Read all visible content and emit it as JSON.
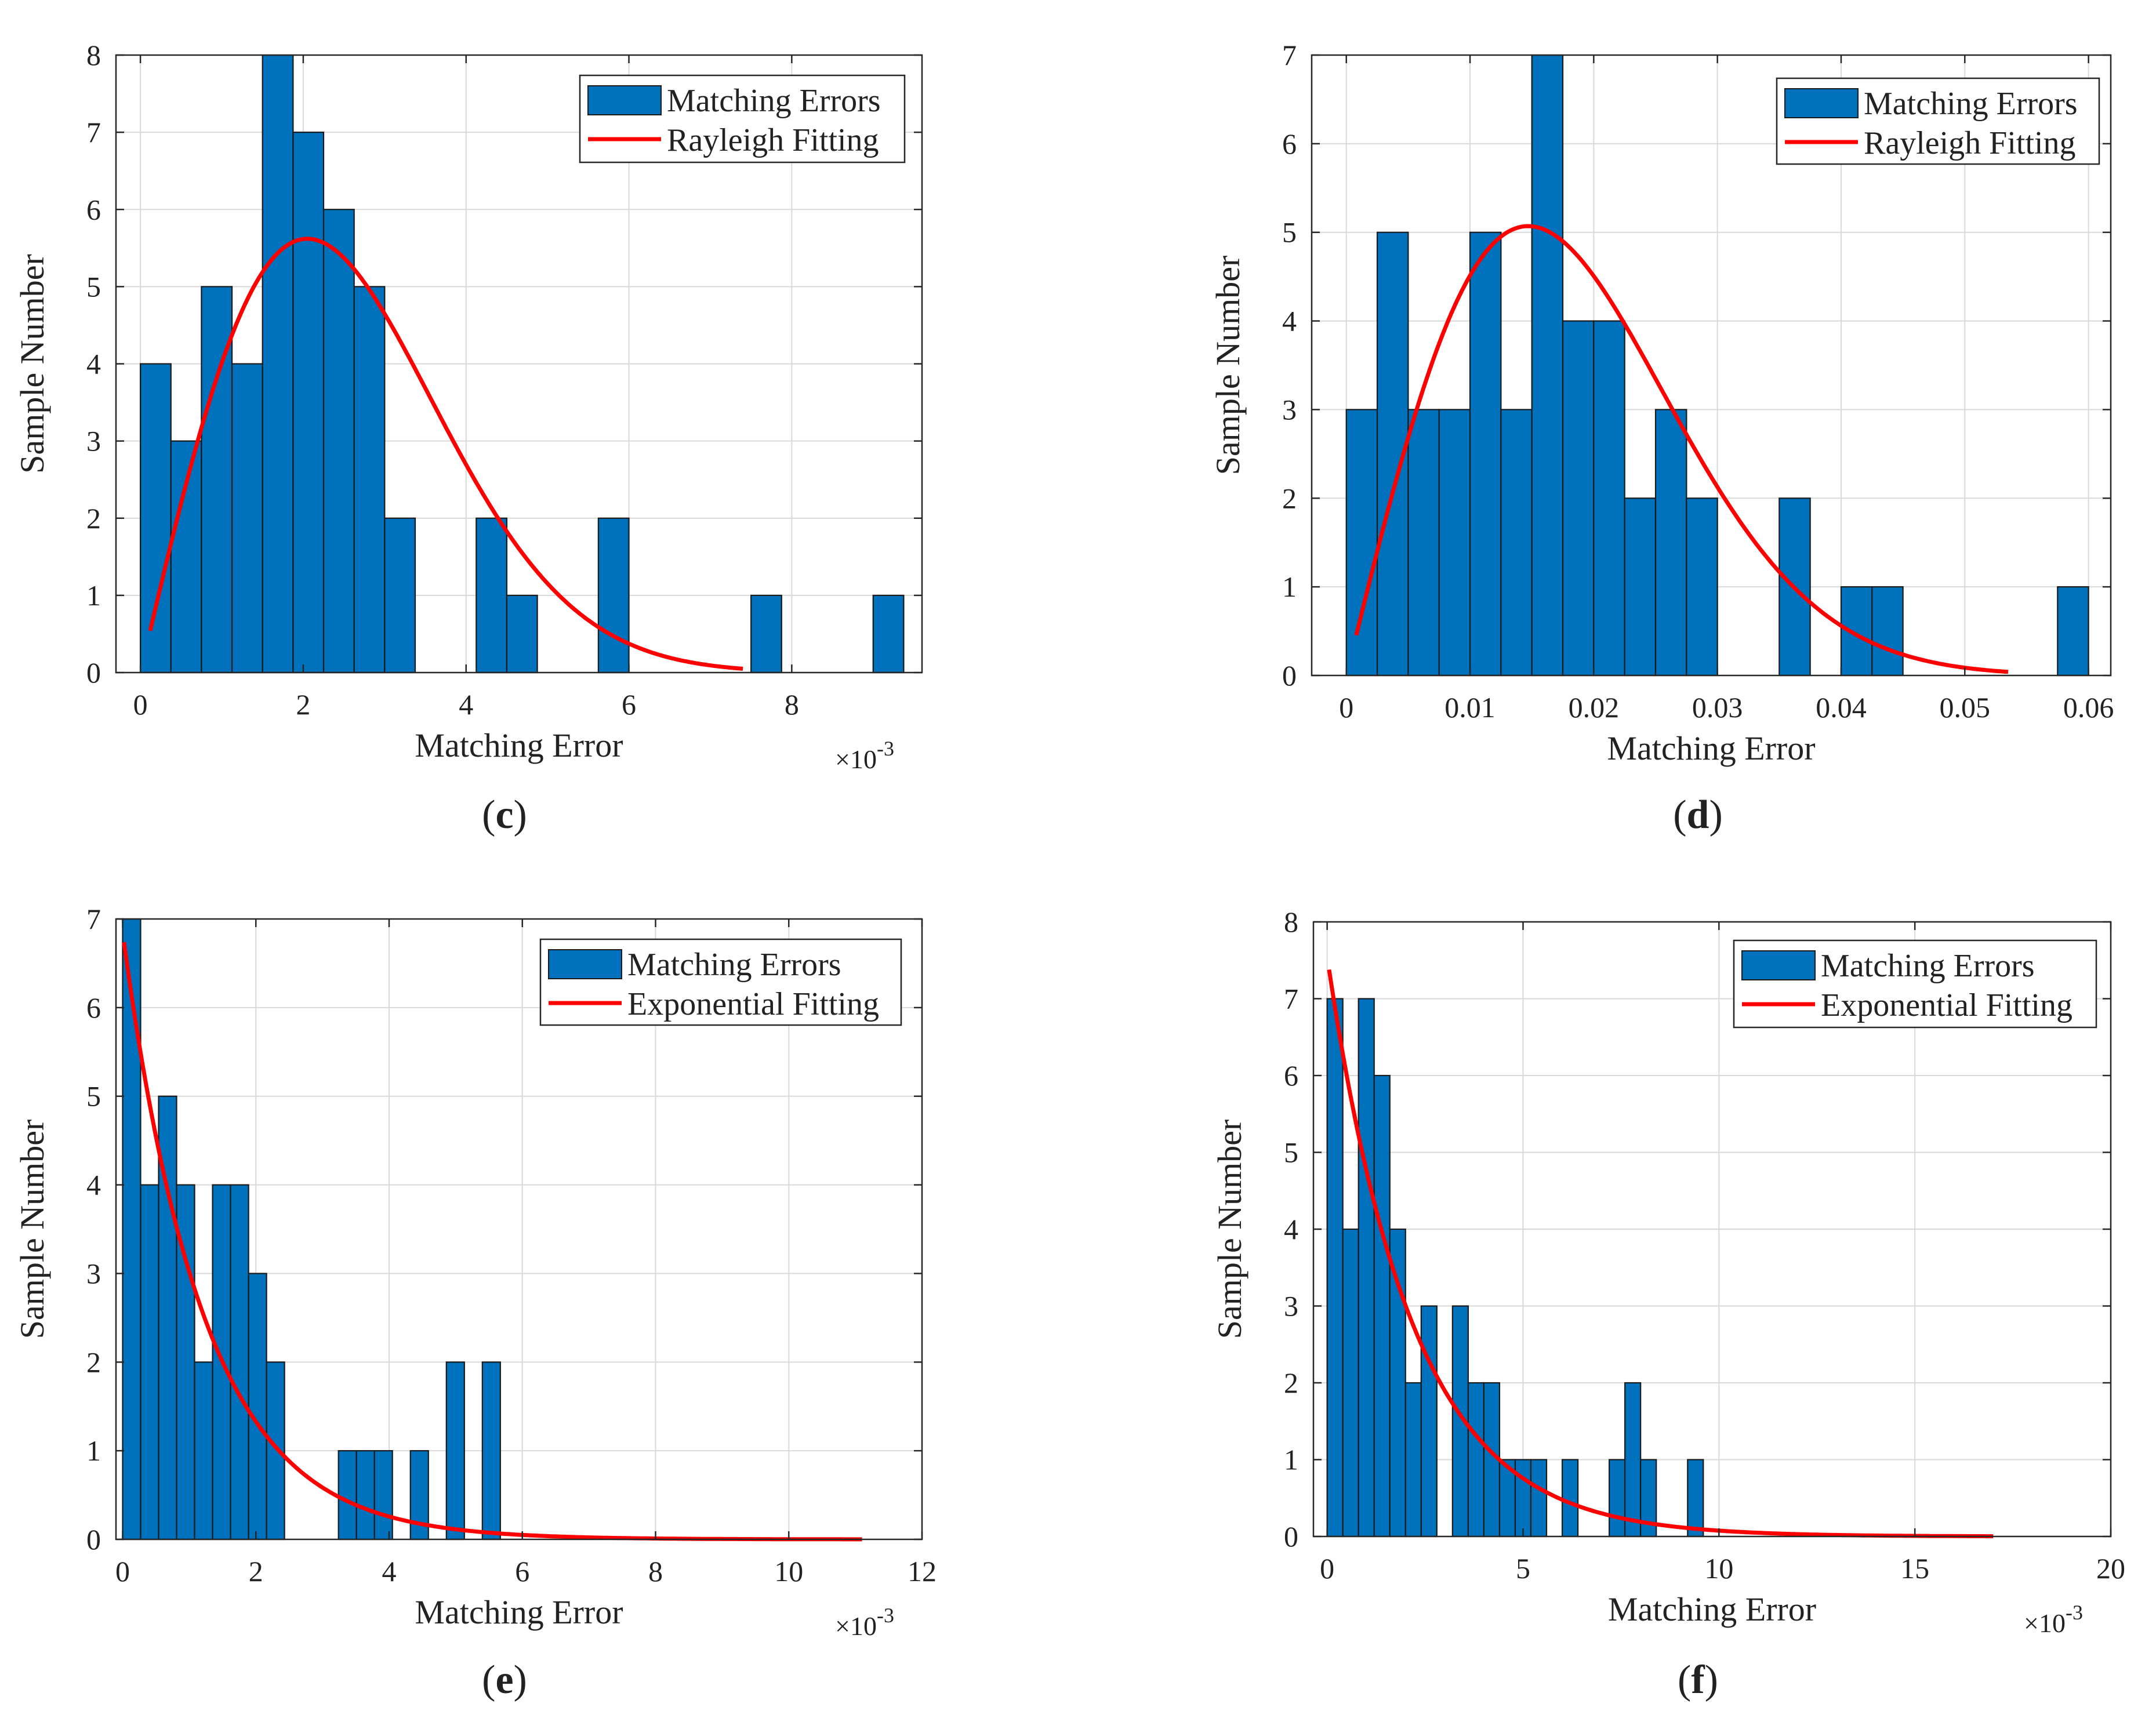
{
  "figure": {
    "panels": [
      "c",
      "d",
      "e",
      "f"
    ]
  },
  "chart_data": [
    {
      "id": "c",
      "type": "bar",
      "caption": {
        "open": "(",
        "letter": "c",
        "close": ")"
      },
      "xlabel": "Matching Error",
      "ylabel": "Sample Number",
      "x_exponent": {
        "base": "×10",
        "power": "-3"
      },
      "xlim": [
        -0.3,
        9.6
      ],
      "ylim": [
        0,
        8
      ],
      "xticks": [
        0,
        2,
        4,
        6,
        8
      ],
      "xtick_labels": [
        "0",
        "2",
        "4",
        "6",
        "8"
      ],
      "yticks": [
        0,
        1,
        2,
        3,
        4,
        5,
        6,
        7,
        8
      ],
      "ytick_labels": [
        "0",
        "1",
        "2",
        "3",
        "4",
        "5",
        "6",
        "7",
        "8"
      ],
      "grid": true,
      "legend_position": "top-right",
      "legend": [
        "Matching Errors",
        "Rayleigh Fitting"
      ],
      "colors": {
        "bar": "#0072BD",
        "fit": "#FF0000"
      },
      "bars": {
        "edges": [
          0,
          0.375,
          0.75,
          1.125,
          1.5,
          1.875,
          2.25,
          2.625,
          3.0,
          3.375,
          3.75,
          4.125,
          4.5,
          4.875,
          5.25,
          5.625,
          6.0,
          6.375,
          6.75,
          7.125,
          7.5,
          7.875,
          8.25,
          8.625,
          9.0,
          9.375
        ],
        "values": [
          4,
          3,
          5,
          4,
          8,
          7,
          6,
          5,
          2,
          0,
          0,
          2,
          1,
          0,
          0,
          2,
          0,
          0,
          0,
          0,
          1,
          0,
          0,
          0,
          1
        ]
      },
      "fit": {
        "kind": "rayleigh",
        "sigma": 2.05,
        "peak": 5.62,
        "x_range": [
          0.12,
          7.4
        ],
        "points": [
          [
            0.12,
            0.5
          ],
          [
            2.05,
            5.62
          ],
          [
            3.0,
            4.7
          ],
          [
            4.0,
            2.65
          ],
          [
            5.0,
            1.1
          ],
          [
            6.0,
            0.37
          ],
          [
            7.4,
            0.05
          ]
        ]
      }
    },
    {
      "id": "d",
      "type": "bar",
      "caption": {
        "open": "(",
        "letter": "d",
        "close": ")"
      },
      "xlabel": "Matching Error",
      "ylabel": "Sample Number",
      "x_exponent": null,
      "xlim": [
        -0.0028,
        0.0618
      ],
      "ylim": [
        0,
        7
      ],
      "xticks": [
        0,
        0.01,
        0.02,
        0.03,
        0.04,
        0.05,
        0.06
      ],
      "xtick_labels": [
        "0",
        "0.01",
        "0.02",
        "0.03",
        "0.04",
        "0.05",
        "0.06"
      ],
      "yticks": [
        0,
        1,
        2,
        3,
        4,
        5,
        6,
        7
      ],
      "ytick_labels": [
        "0",
        "1",
        "2",
        "3",
        "4",
        "5",
        "6",
        "7"
      ],
      "grid": true,
      "legend_position": "top-right",
      "legend": [
        "Matching Errors",
        "Rayleigh Fitting"
      ],
      "colors": {
        "bar": "#0072BD",
        "fit": "#FF0000"
      },
      "bars": {
        "edges": [
          0,
          0.0025,
          0.005,
          0.0075,
          0.01,
          0.0125,
          0.015,
          0.0175,
          0.02,
          0.0225,
          0.025,
          0.0275,
          0.03,
          0.0325,
          0.035,
          0.0375,
          0.04,
          0.0425,
          0.045,
          0.0475,
          0.05,
          0.0525,
          0.055,
          0.0575,
          0.06
        ],
        "values": [
          3,
          5,
          3,
          3,
          5,
          3,
          7,
          4,
          4,
          2,
          3,
          2,
          0,
          0,
          2,
          0,
          1,
          1,
          0,
          0,
          0,
          0,
          0,
          1
        ]
      },
      "fit": {
        "kind": "rayleigh",
        "sigma": 0.0147,
        "peak": 5.07,
        "x_range": [
          0.0008,
          0.0535
        ],
        "points": [
          [
            0.0008,
            0.45
          ],
          [
            0.0147,
            5.07
          ],
          [
            0.025,
            3.2
          ],
          [
            0.035,
            1.2
          ],
          [
            0.0535,
            0.05
          ]
        ]
      }
    },
    {
      "id": "e",
      "type": "bar",
      "caption": {
        "open": "(",
        "letter": "e",
        "close": ")"
      },
      "xlabel": "Matching Error",
      "ylabel": "Sample Number",
      "x_exponent": {
        "base": "×10",
        "power": "-3"
      },
      "xlim": [
        -0.1,
        12
      ],
      "ylim": [
        0,
        7
      ],
      "xticks": [
        0,
        2,
        4,
        6,
        8,
        10,
        12
      ],
      "xtick_labels": [
        "0",
        "2",
        "4",
        "6",
        "8",
        "10",
        "12"
      ],
      "yticks": [
        0,
        1,
        2,
        3,
        4,
        5,
        6,
        7
      ],
      "ytick_labels": [
        "0",
        "1",
        "2",
        "3",
        "4",
        "5",
        "6",
        "7"
      ],
      "grid": true,
      "legend_position": "top-right",
      "legend": [
        "Matching Errors",
        "Exponential Fitting"
      ],
      "colors": {
        "bar": "#0072BD",
        "fit": "#FF0000"
      },
      "bars": {
        "edges": [
          0,
          0.27,
          0.54,
          0.81,
          1.08,
          1.35,
          1.62,
          1.89,
          2.16,
          2.43,
          2.7,
          2.97,
          3.24,
          3.51,
          3.78,
          4.05,
          4.32,
          4.59,
          4.86,
          5.13,
          5.4,
          5.67
        ],
        "values": [
          7,
          4,
          5,
          4,
          2,
          4,
          4,
          3,
          2,
          0,
          0,
          0,
          1,
          1,
          1,
          0,
          1,
          0,
          2,
          0,
          2
        ]
      },
      "fit": {
        "kind": "exponential",
        "amplitude": 6.85,
        "rate": 0.82,
        "x_range": [
          0.02,
          11.1
        ],
        "points": [
          [
            0.02,
            6.85
          ],
          [
            1.0,
            3.0
          ],
          [
            2.0,
            1.35
          ],
          [
            4.0,
            0.25
          ],
          [
            6.0,
            0.05
          ],
          [
            11.1,
            0.0
          ]
        ]
      }
    },
    {
      "id": "f",
      "type": "bar",
      "caption": {
        "open": "(",
        "letter": "f",
        "close": ")"
      },
      "xlabel": "Matching Error",
      "ylabel": "Sample Number",
      "x_exponent": {
        "base": "×10",
        "power": "-3"
      },
      "xlim": [
        -0.35,
        20
      ],
      "ylim": [
        0,
        8
      ],
      "xticks": [
        0,
        5,
        10,
        15,
        20
      ],
      "xtick_labels": [
        "0",
        "5",
        "10",
        "15",
        "20"
      ],
      "yticks": [
        0,
        1,
        2,
        3,
        4,
        5,
        6,
        7,
        8
      ],
      "ytick_labels": [
        "0",
        "1",
        "2",
        "3",
        "4",
        "5",
        "6",
        "7",
        "8"
      ],
      "grid": true,
      "legend_position": "top-right",
      "legend": [
        "Matching Errors",
        "Exponential Fitting"
      ],
      "colors": {
        "bar": "#0072BD",
        "fit": "#FF0000"
      },
      "bars": {
        "edges": [
          0,
          0.4,
          0.8,
          1.2,
          1.6,
          2.0,
          2.4,
          2.8,
          3.2,
          3.6,
          4.0,
          4.4,
          4.8,
          5.2,
          5.6,
          6.0,
          6.4,
          6.8,
          7.2,
          7.6,
          8.0,
          8.4,
          8.8,
          9.2,
          9.6
        ],
        "values": [
          7,
          4,
          7,
          6,
          4,
          2,
          3,
          0,
          3,
          2,
          2,
          1,
          1,
          1,
          0,
          1,
          0,
          0,
          1,
          2,
          1,
          0,
          0,
          1
        ]
      },
      "fit": {
        "kind": "exponential",
        "amplitude": 7.55,
        "rate": 0.46,
        "x_range": [
          0.05,
          17.0
        ],
        "points": [
          [
            0.05,
            7.55
          ],
          [
            2.0,
            3.0
          ],
          [
            4.0,
            1.2
          ],
          [
            6.0,
            0.48
          ],
          [
            10.0,
            0.08
          ],
          [
            17.0,
            0.0
          ]
        ]
      }
    }
  ]
}
